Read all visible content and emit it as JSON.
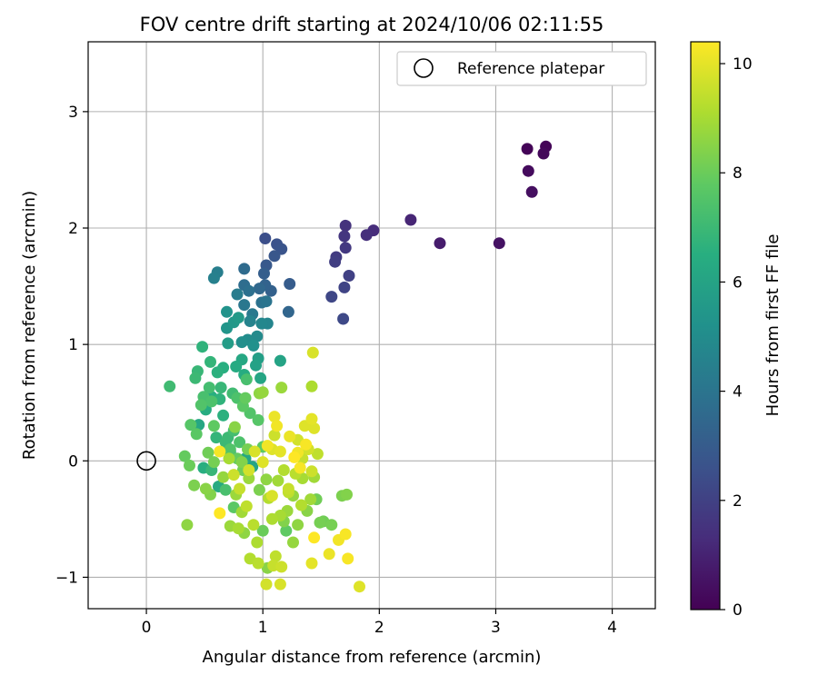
{
  "chart_data": {
    "type": "scatter",
    "title": "FOV centre drift starting at 2024/10/06 02:11:55",
    "xlabel": "Angular distance from reference (arcmin)",
    "ylabel": "Rotation from reference (arcmin)",
    "xlim": [
      -0.5,
      4.37
    ],
    "ylim": [
      -1.27,
      3.6
    ],
    "xticks": [
      0,
      1,
      2,
      3,
      4
    ],
    "yticks": [
      -1,
      0,
      1,
      2,
      3
    ],
    "xtick_labels": [
      "0",
      "1",
      "2",
      "3",
      "4"
    ],
    "ytick_labels": [
      "−1",
      "0",
      "1",
      "2",
      "3"
    ],
    "grid": true,
    "legend": {
      "placement": "top-right",
      "entries": [
        {
          "label": "Reference platepar",
          "marker": "open-circle"
        }
      ]
    },
    "reference_point": {
      "x": 0,
      "y": 0
    },
    "colorbar": {
      "label": "Hours from first FF file",
      "colormap": "viridis",
      "range": [
        0,
        10.4
      ],
      "ticks": [
        0,
        2,
        4,
        6,
        8,
        10
      ],
      "tick_labels": [
        "0",
        "2",
        "4",
        "6",
        "8",
        "10"
      ]
    },
    "series": [
      {
        "values_format": "[x, y, hours]",
        "points": [
          [
            3.27,
            2.68,
            0.1
          ],
          [
            3.43,
            2.7,
            0.1
          ],
          [
            3.41,
            2.64,
            0.2
          ],
          [
            3.28,
            2.49,
            0.3
          ],
          [
            3.31,
            2.31,
            0.4
          ],
          [
            3.03,
            1.87,
            0.5
          ],
          [
            2.52,
            1.87,
            0.8
          ],
          [
            2.27,
            2.07,
            1.1
          ],
          [
            1.95,
            1.98,
            1.3
          ],
          [
            1.89,
            1.94,
            1.4
          ],
          [
            1.71,
            2.02,
            1.5
          ],
          [
            1.7,
            1.93,
            1.6
          ],
          [
            1.71,
            1.83,
            1.7
          ],
          [
            1.63,
            1.75,
            1.8
          ],
          [
            1.62,
            1.71,
            1.9
          ],
          [
            1.74,
            1.59,
            2.0
          ],
          [
            1.7,
            1.49,
            2.1
          ],
          [
            1.59,
            1.41,
            2.2
          ],
          [
            1.69,
            1.22,
            2.3
          ],
          [
            1.02,
            1.91,
            2.5
          ],
          [
            1.12,
            1.86,
            2.6
          ],
          [
            1.16,
            1.82,
            2.7
          ],
          [
            1.1,
            1.76,
            2.8
          ],
          [
            1.03,
            1.68,
            2.9
          ],
          [
            1.23,
            1.52,
            3.0
          ],
          [
            1.01,
            1.61,
            3.1
          ],
          [
            1.07,
            1.46,
            3.2
          ],
          [
            1.02,
            1.51,
            3.3
          ],
          [
            1.22,
            1.28,
            3.4
          ],
          [
            0.97,
            1.48,
            3.5
          ],
          [
            0.84,
            1.65,
            3.6
          ],
          [
            0.84,
            1.51,
            3.7
          ],
          [
            0.88,
            1.46,
            3.8
          ],
          [
            0.99,
            1.36,
            3.9
          ],
          [
            1.03,
            1.37,
            4.0
          ],
          [
            0.84,
            1.34,
            4.1
          ],
          [
            0.91,
            1.26,
            4.2
          ],
          [
            0.78,
            1.43,
            4.3
          ],
          [
            0.61,
            1.62,
            4.4
          ],
          [
            0.58,
            1.57,
            4.5
          ],
          [
            0.89,
            1.2,
            4.6
          ],
          [
            1.04,
            1.18,
            4.7
          ],
          [
            0.99,
            1.18,
            4.8
          ],
          [
            0.95,
            1.07,
            4.9
          ],
          [
            0.87,
            1.04,
            5.0
          ],
          [
            0.82,
            1.02,
            5.1
          ],
          [
            0.92,
            0.99,
            5.2
          ],
          [
            0.69,
            1.28,
            5.3
          ],
          [
            0.69,
            1.14,
            5.4
          ],
          [
            0.75,
            1.19,
            5.5
          ],
          [
            0.79,
            1.23,
            5.6
          ],
          [
            0.7,
            1.01,
            5.7
          ],
          [
            0.96,
            0.88,
            5.8
          ],
          [
            0.94,
            0.82,
            5.9
          ],
          [
            1.15,
            0.86,
            6.0
          ],
          [
            0.98,
            0.71,
            6.1
          ],
          [
            0.82,
            0.87,
            6.2
          ],
          [
            0.77,
            0.81,
            6.3
          ],
          [
            0.84,
            0.74,
            6.4
          ],
          [
            0.66,
            0.8,
            6.5
          ],
          [
            0.61,
            0.76,
            6.6
          ],
          [
            0.48,
            0.98,
            6.7
          ],
          [
            0.55,
            0.85,
            6.8
          ],
          [
            0.44,
            0.77,
            6.9
          ],
          [
            0.42,
            0.71,
            7.0
          ],
          [
            0.2,
            0.64,
            7.1
          ],
          [
            0.54,
            0.63,
            7.2
          ],
          [
            0.49,
            0.55,
            7.3
          ],
          [
            0.56,
            0.51,
            7.4
          ],
          [
            0.47,
            0.48,
            7.5
          ],
          [
            0.38,
            0.31,
            7.6
          ],
          [
            0.43,
            0.23,
            7.7
          ],
          [
            0.58,
            0.3,
            7.8
          ],
          [
            0.33,
            0.04,
            7.9
          ],
          [
            0.37,
            -0.04,
            8.0
          ],
          [
            0.53,
            0.07,
            8.1
          ],
          [
            0.58,
            -0.01,
            8.2
          ],
          [
            0.41,
            -0.21,
            8.3
          ],
          [
            0.55,
            -0.29,
            8.4
          ],
          [
            0.51,
            -0.24,
            8.5
          ],
          [
            0.35,
            -0.55,
            8.6
          ],
          [
            0.66,
            -0.14,
            8.7
          ],
          [
            0.77,
            -0.29,
            8.8
          ],
          [
            0.82,
            -0.44,
            8.9
          ],
          [
            0.79,
            -0.58,
            9.0
          ],
          [
            0.95,
            -0.7,
            9.1
          ],
          [
            0.89,
            -0.84,
            9.2
          ],
          [
            0.96,
            -0.88,
            9.3
          ],
          [
            1.11,
            -0.82,
            9.4
          ],
          [
            1.09,
            -0.9,
            9.5
          ],
          [
            1.16,
            -0.91,
            9.6
          ],
          [
            1.03,
            -1.06,
            9.7
          ],
          [
            1.15,
            -1.06,
            9.8
          ],
          [
            1.83,
            -1.08,
            9.9
          ],
          [
            1.42,
            -0.88,
            10.0
          ],
          [
            1.57,
            -0.8,
            10.1
          ],
          [
            1.65,
            -0.68,
            10.2
          ],
          [
            1.71,
            -0.63,
            10.3
          ],
          [
            1.73,
            -0.84,
            10.3
          ],
          [
            1.44,
            -0.66,
            10.4
          ],
          [
            1.52,
            -0.52,
            8.1
          ],
          [
            1.59,
            -0.55,
            8.2
          ],
          [
            1.68,
            -0.3,
            8.3
          ],
          [
            1.72,
            -0.29,
            8.4
          ],
          [
            1.38,
            -0.43,
            8.5
          ],
          [
            1.3,
            -0.55,
            8.6
          ],
          [
            1.26,
            -0.7,
            8.7
          ],
          [
            1.21,
            -0.43,
            8.8
          ],
          [
            1.41,
            -0.33,
            8.9
          ],
          [
            1.34,
            -0.15,
            9.0
          ],
          [
            1.08,
            -0.5,
            9.1
          ],
          [
            1.05,
            -0.32,
            9.2
          ],
          [
            0.92,
            -0.55,
            9.3
          ],
          [
            0.86,
            -0.39,
            9.4
          ],
          [
            0.8,
            -0.24,
            9.5
          ],
          [
            0.75,
            -0.12,
            9.6
          ],
          [
            0.88,
            -0.08,
            9.7
          ],
          [
            0.93,
            0.08,
            9.8
          ],
          [
            1.0,
            -0.01,
            9.9
          ],
          [
            1.15,
            0.08,
            10.0
          ],
          [
            1.23,
            0.21,
            10.1
          ],
          [
            1.3,
            0.07,
            10.2
          ],
          [
            1.37,
            0.14,
            10.3
          ],
          [
            1.32,
            -0.06,
            10.3
          ],
          [
            1.27,
            0.03,
            10.4
          ],
          [
            1.42,
            0.36,
            10.0
          ],
          [
            1.44,
            0.28,
            9.9
          ],
          [
            1.1,
            0.38,
            10.1
          ],
          [
            1.12,
            0.3,
            10.2
          ],
          [
            0.63,
            -0.45,
            10.4
          ],
          [
            0.63,
            0.08,
            10.3
          ],
          [
            0.71,
            0.02,
            9.0
          ],
          [
            0.76,
            0.29,
            8.5
          ],
          [
            0.87,
            0.1,
            8.2
          ],
          [
            1.0,
            0.12,
            7.8
          ],
          [
            1.0,
            0.59,
            8.7
          ],
          [
            0.96,
            0.35,
            7.6
          ],
          [
            0.8,
            0.16,
            7.4
          ],
          [
            0.75,
            0.26,
            7.2
          ],
          [
            0.68,
            0.16,
            7.0
          ],
          [
            0.6,
            0.2,
            6.8
          ],
          [
            0.66,
            0.39,
            6.6
          ],
          [
            0.72,
            0.08,
            6.4
          ],
          [
            0.85,
            0.02,
            6.2
          ],
          [
            0.91,
            -0.05,
            6.0
          ],
          [
            0.62,
            -0.22,
            6.3
          ],
          [
            0.49,
            -0.06,
            6.5
          ],
          [
            0.56,
            -0.08,
            6.9
          ],
          [
            0.68,
            -0.25,
            7.3
          ],
          [
            0.75,
            -0.4,
            7.7
          ],
          [
            0.83,
            -0.08,
            8.1
          ],
          [
            0.97,
            -0.25,
            8.3
          ],
          [
            1.03,
            -0.16,
            8.6
          ],
          [
            1.13,
            -0.17,
            8.9
          ],
          [
            1.18,
            -0.08,
            9.2
          ],
          [
            1.22,
            -0.24,
            9.5
          ],
          [
            1.08,
            -0.3,
            9.8
          ],
          [
            1.18,
            -0.52,
            8.4
          ],
          [
            1.2,
            -0.6,
            7.8
          ],
          [
            1.0,
            -0.6,
            8.0
          ],
          [
            0.84,
            -0.62,
            8.6
          ],
          [
            0.72,
            -0.56,
            8.8
          ],
          [
            1.04,
            -0.92,
            8.5
          ],
          [
            1.42,
            -0.09,
            9.6
          ],
          [
            1.47,
            0.06,
            9.4
          ],
          [
            1.39,
            0.1,
            9.7
          ],
          [
            1.34,
            0.02,
            9.5
          ],
          [
            1.28,
            -0.11,
            9.3
          ],
          [
            1.33,
            -0.38,
            9.2
          ],
          [
            1.44,
            -0.14,
            8.9
          ],
          [
            1.42,
            0.64,
            9.1
          ],
          [
            1.43,
            0.93,
            9.8
          ],
          [
            1.16,
            0.63,
            8.8
          ],
          [
            0.97,
            0.58,
            8.6
          ],
          [
            0.85,
            0.54,
            7.9
          ],
          [
            0.83,
            0.47,
            7.7
          ],
          [
            0.89,
            0.41,
            7.5
          ],
          [
            0.78,
            0.54,
            7.4
          ],
          [
            0.86,
            0.7,
            7.3
          ],
          [
            0.74,
            0.58,
            7.1
          ],
          [
            0.64,
            0.63,
            6.9
          ],
          [
            0.63,
            0.53,
            6.7
          ],
          [
            0.56,
            0.55,
            6.5
          ],
          [
            0.51,
            0.44,
            6.4
          ],
          [
            0.45,
            0.31,
            6.2
          ],
          [
            0.7,
            0.2,
            7.0
          ],
          [
            0.72,
            0.1,
            7.5
          ],
          [
            0.78,
            0.02,
            7.9
          ],
          [
            0.82,
            -0.01,
            8.4
          ],
          [
            0.88,
            -0.15,
            8.8
          ],
          [
            1.15,
            -0.47,
            9.0
          ],
          [
            1.26,
            -0.3,
            8.7
          ],
          [
            1.46,
            -0.33,
            8.1
          ],
          [
            1.49,
            -0.53,
            8.2
          ],
          [
            1.22,
            -0.27,
            9.4
          ],
          [
            1.1,
            0.22,
            9.6
          ],
          [
            1.08,
            0.1,
            9.9
          ],
          [
            1.04,
            0.13,
            10.2
          ],
          [
            1.3,
            0.18,
            9.7
          ],
          [
            1.36,
            0.3,
            9.9
          ]
        ]
      }
    ]
  }
}
